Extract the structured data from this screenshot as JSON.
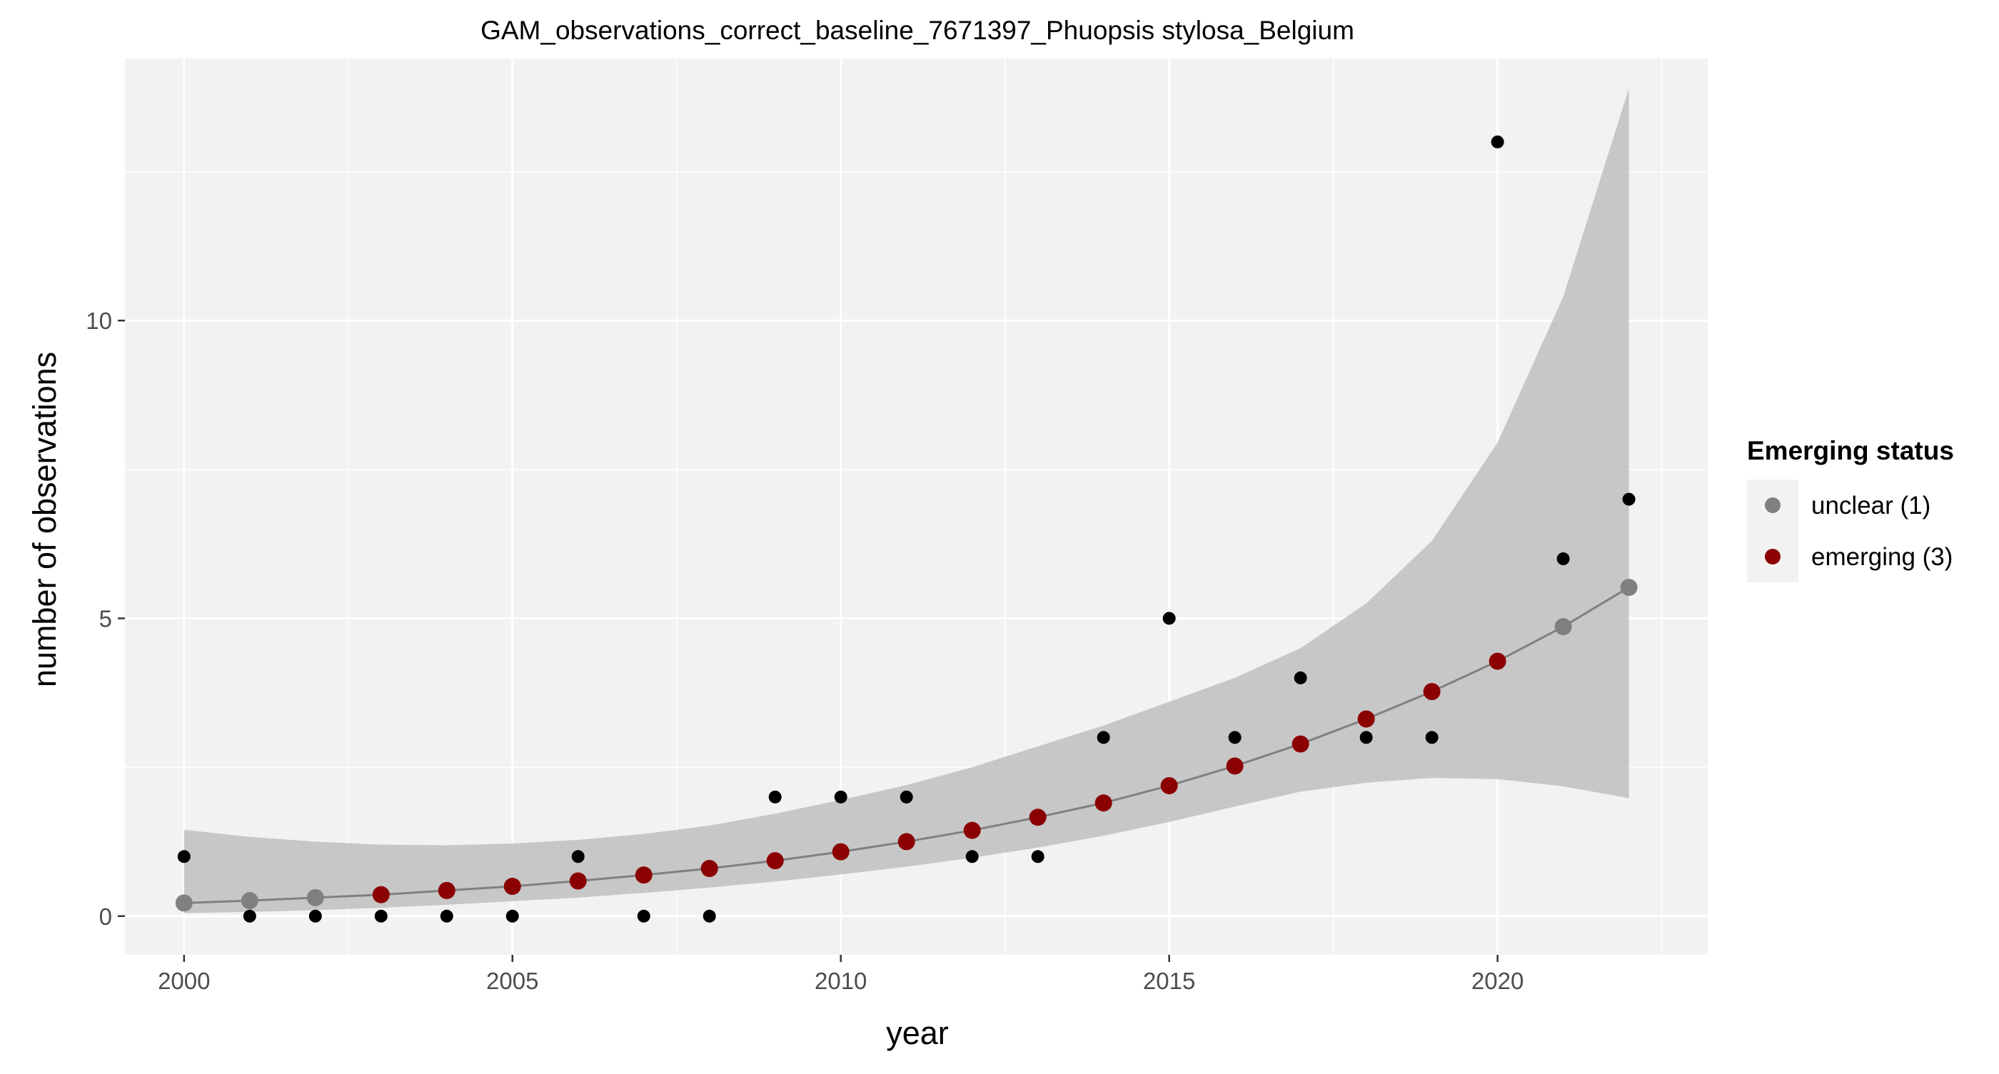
{
  "chart_data": {
    "type": "scatter",
    "title": "GAM_observations_correct_baseline_7671397_Phuopsis stylosa_Belgium",
    "xlabel": "year",
    "ylabel": "number of observations",
    "xlim": [
      1999.1,
      2023.2
    ],
    "ylim": [
      -0.65,
      14.4
    ],
    "x_ticks": [
      2000,
      2005,
      2010,
      2015,
      2020
    ],
    "y_ticks": [
      0,
      5,
      10
    ],
    "grid": true,
    "legend": {
      "title": "Emerging status",
      "position": "right",
      "entries": [
        {
          "label": "unclear (1)",
          "color": "#808080"
        },
        {
          "label": "emerging (3)",
          "color": "#8b0000"
        }
      ]
    },
    "colors": {
      "panel_background": "#f2f2f2",
      "grid": "#ffffff",
      "band": "#bfbfbf",
      "line": "#808080",
      "observed_point": "#000000",
      "unclear": "#808080",
      "emerging": "#8b0000",
      "legend_key_background": "#f2f2f2"
    },
    "observed": {
      "x": [
        2000,
        2001,
        2002,
        2003,
        2004,
        2005,
        2006,
        2007,
        2008,
        2009,
        2010,
        2011,
        2012,
        2013,
        2014,
        2015,
        2016,
        2017,
        2018,
        2019,
        2020,
        2021,
        2022
      ],
      "y": [
        1,
        0,
        0,
        0,
        0,
        0,
        1,
        0,
        0,
        2,
        2,
        2,
        1,
        1,
        3,
        5,
        3,
        4,
        3,
        3,
        13,
        6,
        7
      ]
    },
    "fit": {
      "x": [
        2000,
        2001,
        2002,
        2003,
        2004,
        2005,
        2006,
        2007,
        2008,
        2009,
        2010,
        2011,
        2012,
        2013,
        2014,
        2015,
        2016,
        2017,
        2018,
        2019,
        2020,
        2021,
        2022
      ],
      "y": [
        0.22,
        0.26,
        0.31,
        0.36,
        0.43,
        0.5,
        0.59,
        0.69,
        0.8,
        0.93,
        1.08,
        1.25,
        1.44,
        1.66,
        1.9,
        2.19,
        2.52,
        2.89,
        3.31,
        3.77,
        4.28,
        4.86,
        5.52
      ],
      "lower": [
        0.05,
        0.07,
        0.1,
        0.14,
        0.19,
        0.25,
        0.31,
        0.39,
        0.48,
        0.58,
        0.7,
        0.83,
        0.98,
        1.15,
        1.35,
        1.58,
        1.84,
        2.09,
        2.24,
        2.32,
        2.3,
        2.18,
        1.98
      ],
      "upper": [
        1.45,
        1.33,
        1.25,
        1.2,
        1.19,
        1.22,
        1.28,
        1.38,
        1.52,
        1.72,
        1.95,
        2.2,
        2.5,
        2.85,
        3.2,
        3.6,
        4.0,
        4.5,
        5.25,
        6.3,
        7.95,
        10.4,
        13.9
      ],
      "status": [
        "unclear",
        "unclear",
        "unclear",
        "emerging",
        "emerging",
        "emerging",
        "emerging",
        "emerging",
        "emerging",
        "emerging",
        "emerging",
        "emerging",
        "emerging",
        "emerging",
        "emerging",
        "emerging",
        "emerging",
        "emerging",
        "emerging",
        "emerging",
        "emerging",
        "unclear",
        "unclear"
      ]
    }
  }
}
